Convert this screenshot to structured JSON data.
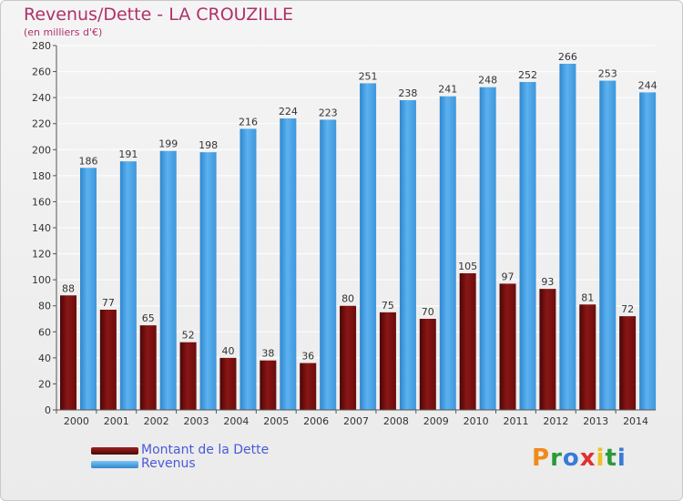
{
  "chart_data": {
    "type": "bar",
    "title": "Revenus/Dette - LA CROUZILLE",
    "subtitle": "(en milliers d'€)",
    "categories": [
      "2000",
      "2001",
      "2002",
      "2003",
      "2004",
      "2005",
      "2006",
      "2007",
      "2008",
      "2009",
      "2010",
      "2011",
      "2012",
      "2013",
      "2014"
    ],
    "series": [
      {
        "name": "Montant de la Dette",
        "color": "#7a1010",
        "values": [
          88,
          77,
          65,
          52,
          40,
          38,
          36,
          80,
          75,
          70,
          105,
          97,
          93,
          81,
          72
        ]
      },
      {
        "name": "Revenus",
        "color": "#4aa0e4",
        "values": [
          186,
          191,
          199,
          198,
          216,
          224,
          223,
          251,
          238,
          241,
          248,
          252,
          266,
          253,
          244
        ]
      }
    ],
    "ylim": [
      0,
      280
    ],
    "yticks": [
      0,
      20,
      40,
      60,
      80,
      100,
      120,
      140,
      160,
      180,
      200,
      220,
      240,
      260,
      280
    ],
    "grid": true,
    "legend": "bottom-left"
  },
  "logo": {
    "text": "Proxiti"
  }
}
